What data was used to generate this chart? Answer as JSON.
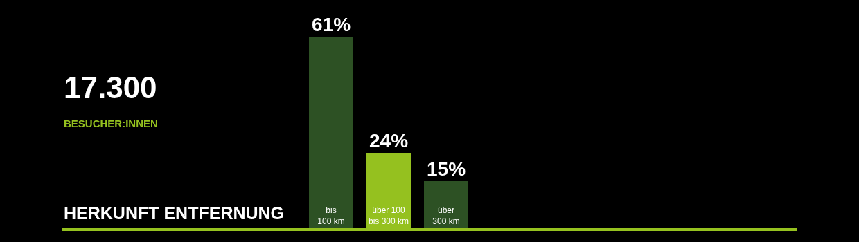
{
  "chart_data": {
    "type": "bar",
    "title": "HERKUNFT ENTFERNUNG",
    "categories": [
      "bis\n100 km",
      "über 100\nbis 300 km",
      "über\n300 km"
    ],
    "values": [
      61,
      24,
      15
    ],
    "colors": [
      "#2d5124",
      "#95c11f",
      "#2d5124"
    ],
    "value_labels": [
      "61%",
      "24%",
      "15%"
    ],
    "annotations": [
      "17.300",
      "BESUCHER:INNEN"
    ],
    "grid": false,
    "legend": false
  }
}
